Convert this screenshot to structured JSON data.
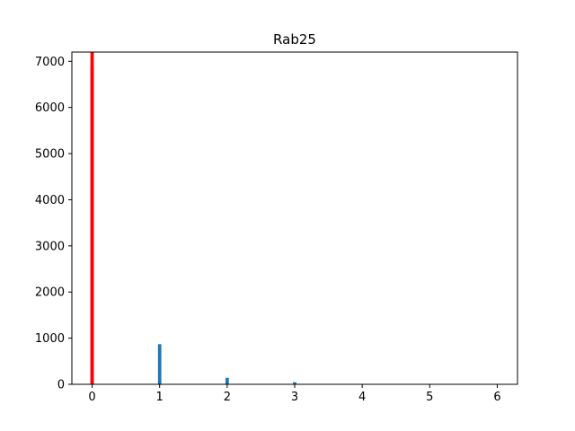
{
  "chart_data": {
    "type": "bar",
    "title": "Rab25",
    "xlabel": "",
    "ylabel": "",
    "xlim": [
      -0.3,
      6.3
    ],
    "ylim": [
      0,
      7200
    ],
    "x_ticks": [
      0,
      1,
      2,
      3,
      4,
      5,
      6
    ],
    "y_ticks": [
      0,
      1000,
      2000,
      3000,
      4000,
      5000,
      6000,
      7000
    ],
    "grid": false,
    "legend": "none",
    "bar_width": 0.05,
    "series": [
      {
        "color": "#1f77b4",
        "x": [
          0,
          1,
          2,
          3
        ],
        "values": [
          6900,
          870,
          140,
          45
        ]
      },
      {
        "color": "#ff0000",
        "x": [
          0
        ],
        "values": [
          7200
        ]
      }
    ]
  }
}
